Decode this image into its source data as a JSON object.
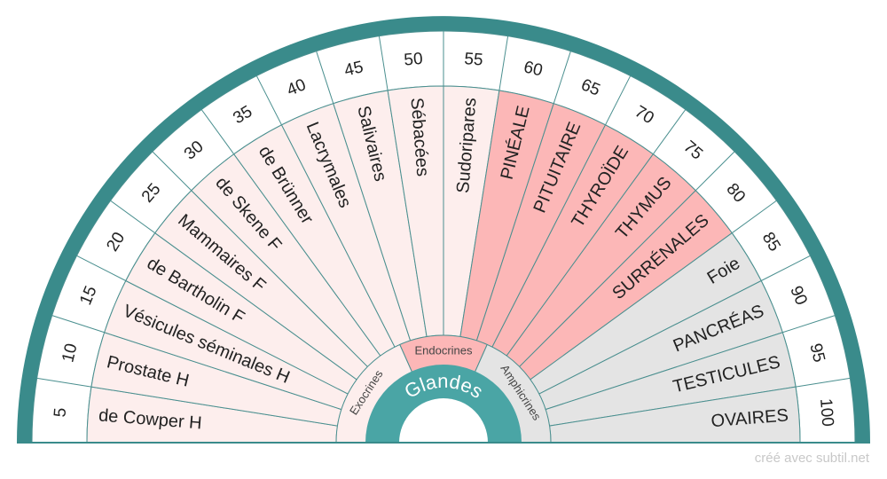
{
  "title": "Glandes",
  "footer": "créé avec subtil.net",
  "groups": [
    {
      "label": "Exocrines",
      "color": "#fdeeed"
    },
    {
      "label": "Endocrines",
      "color": "#fcb7b7"
    },
    {
      "label": "Amphicrines",
      "color": "#e4e4e4"
    }
  ],
  "colors": {
    "accent": "#3a8b8b",
    "center": "#4aa5a5",
    "line": "#4a8f8f",
    "border": "#3a7f7f"
  },
  "sectors": [
    {
      "number": "5",
      "label": "de Cowper H",
      "group": 0
    },
    {
      "number": "10",
      "label": "Prostate H",
      "group": 0
    },
    {
      "number": "15",
      "label": "Vésicules séminales H",
      "group": 0
    },
    {
      "number": "20",
      "label": "de Bartholin F",
      "group": 0
    },
    {
      "number": "25",
      "label": "Mammaires F",
      "group": 0
    },
    {
      "number": "30",
      "label": "de Skene F",
      "group": 0
    },
    {
      "number": "35",
      "label": "de Brünner",
      "group": 0
    },
    {
      "number": "40",
      "label": "Lacrymales",
      "group": 0
    },
    {
      "number": "45",
      "label": "Salivaires",
      "group": 0
    },
    {
      "number": "50",
      "label": "Sébacées",
      "group": 0
    },
    {
      "number": "55",
      "label": "Sudoripares",
      "group": 0
    },
    {
      "number": "60",
      "label": "PINÉALE",
      "group": 1
    },
    {
      "number": "65",
      "label": "PITUITAIRE",
      "group": 1
    },
    {
      "number": "70",
      "label": "THYROÏDE",
      "group": 1
    },
    {
      "number": "75",
      "label": "THYMUS",
      "group": 1
    },
    {
      "number": "80",
      "label": "SURRÉNALES",
      "group": 1
    },
    {
      "number": "85",
      "label": "Foie",
      "group": 2
    },
    {
      "number": "90",
      "label": "PANCRÉAS",
      "group": 2
    },
    {
      "number": "95",
      "label": "TESTICULES",
      "group": 2
    },
    {
      "number": "100",
      "label": "OVAIRES",
      "group": 2
    }
  ]
}
